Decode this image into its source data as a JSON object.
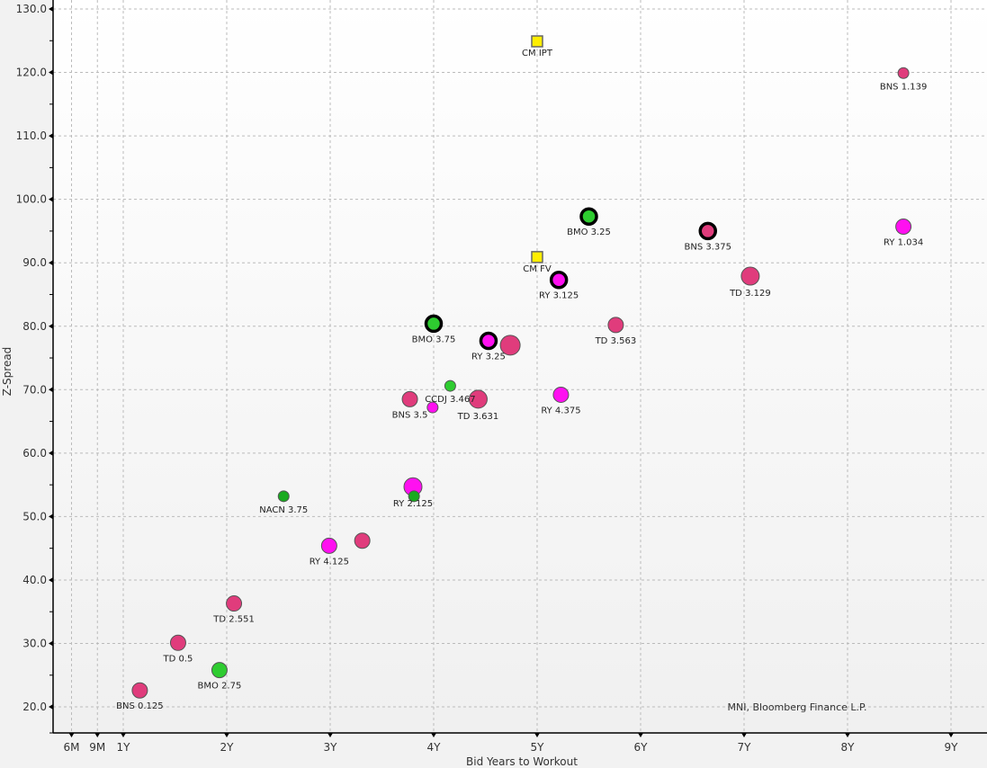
{
  "chart_data": {
    "type": "scatter",
    "title": "",
    "xlabel": "Bid Years to Workout",
    "ylabel": "Z-Spread",
    "source": "MNI, Bloomberg Finance L.P.",
    "xlim": [
      0.32,
      9.35
    ],
    "ylim": [
      16.0,
      130.0
    ],
    "grid": true,
    "x_ticks": [
      {
        "label": "6M",
        "value": 0.5
      },
      {
        "label": "9M",
        "value": 0.75
      },
      {
        "label": "1Y",
        "value": 1.0
      },
      {
        "label": "2Y",
        "value": 2.0
      },
      {
        "label": "3Y",
        "value": 3.0
      },
      {
        "label": "4Y",
        "value": 4.0
      },
      {
        "label": "5Y",
        "value": 5.0
      },
      {
        "label": "6Y",
        "value": 6.0
      },
      {
        "label": "7Y",
        "value": 7.0
      },
      {
        "label": "8Y",
        "value": 8.0
      },
      {
        "label": "9Y",
        "value": 9.0
      }
    ],
    "y_ticks": [
      "20.0",
      "30.0",
      "40.0",
      "50.0",
      "60.0",
      "70.0",
      "80.0",
      "90.0",
      "100.0",
      "110.0",
      "120.0",
      "130.0"
    ],
    "colors": {
      "TD": "#e03c7c",
      "BNS": "#e03c7c",
      "RY": "#ff10f0",
      "BMO": "#2ecc30",
      "NACN": "#1aaa20",
      "CCDJ": "#2ecc30",
      "CM": "#ffee00"
    },
    "points": [
      {
        "label": "CM IPT",
        "issuer": "CM",
        "x": 5.0,
        "y": 124.9,
        "shape": "square",
        "size": "small",
        "highlight": false
      },
      {
        "label": "BNS 1.139",
        "issuer": "BNS",
        "x": 8.54,
        "y": 119.9,
        "shape": "circle",
        "size": "small",
        "highlight": false
      },
      {
        "label": "BMO 3.25",
        "issuer": "BMO",
        "x": 5.5,
        "y": 97.3,
        "shape": "circle",
        "size": "medium",
        "highlight": true
      },
      {
        "label": "BNS 3.375",
        "issuer": "BNS",
        "x": 6.65,
        "y": 95.0,
        "shape": "circle",
        "size": "medium",
        "highlight": true
      },
      {
        "label": "RY 1.034",
        "issuer": "RY",
        "x": 8.54,
        "y": 95.7,
        "shape": "circle",
        "size": "medium",
        "highlight": false
      },
      {
        "label": "CM FV",
        "issuer": "CM",
        "x": 5.0,
        "y": 90.9,
        "shape": "square",
        "size": "small",
        "highlight": false
      },
      {
        "label": "RY 3.125",
        "issuer": "RY",
        "x": 5.21,
        "y": 87.3,
        "shape": "circle",
        "size": "medium",
        "highlight": true
      },
      {
        "label": "TD 3.129",
        "issuer": "TD",
        "x": 7.06,
        "y": 87.9,
        "shape": "circle",
        "size": "large",
        "highlight": false
      },
      {
        "label": "BMO 3.75",
        "issuer": "BMO",
        "x": 4.0,
        "y": 80.4,
        "shape": "circle",
        "size": "medium",
        "highlight": true
      },
      {
        "label": "TD 3.563",
        "issuer": "TD",
        "x": 5.76,
        "y": 80.2,
        "shape": "circle",
        "size": "medium",
        "highlight": false
      },
      {
        "label": "RY 3.25",
        "issuer": "RY",
        "x": 4.53,
        "y": 77.7,
        "shape": "circle",
        "size": "medium",
        "highlight": true
      },
      {
        "label": "",
        "issuer": "TD",
        "x": 4.74,
        "y": 77.0,
        "shape": "circle",
        "size": "xlarge",
        "highlight": false
      },
      {
        "label": "CCDJ 3.467",
        "issuer": "CCDJ",
        "x": 4.16,
        "y": 70.6,
        "shape": "circle",
        "size": "small",
        "highlight": false
      },
      {
        "label": "BNS 3.5",
        "issuer": "BNS",
        "x": 3.77,
        "y": 68.5,
        "shape": "circle",
        "size": "medium",
        "highlight": false
      },
      {
        "label": "TD 3.631",
        "issuer": "TD",
        "x": 4.43,
        "y": 68.5,
        "shape": "circle",
        "size": "large",
        "highlight": false
      },
      {
        "label": "",
        "issuer": "RY",
        "x": 3.99,
        "y": 67.2,
        "shape": "circle",
        "size": "small",
        "highlight": false
      },
      {
        "label": "RY 4.375",
        "issuer": "RY",
        "x": 5.23,
        "y": 69.2,
        "shape": "circle",
        "size": "medium",
        "highlight": false
      },
      {
        "label": "NACN 3.75",
        "issuer": "NACN",
        "x": 2.55,
        "y": 53.2,
        "shape": "circle",
        "size": "small",
        "highlight": false
      },
      {
        "label": "RY 2.125",
        "issuer": "RY",
        "x": 3.8,
        "y": 54.7,
        "shape": "circle",
        "size": "large",
        "highlight": false
      },
      {
        "label": "",
        "issuer": "NACN",
        "x": 3.81,
        "y": 53.2,
        "shape": "circle",
        "size": "small",
        "highlight": false
      },
      {
        "label": "RY 4.125",
        "issuer": "RY",
        "x": 2.99,
        "y": 45.4,
        "shape": "circle",
        "size": "medium",
        "highlight": false
      },
      {
        "label": "",
        "issuer": "TD",
        "x": 3.31,
        "y": 46.2,
        "shape": "circle",
        "size": "medium",
        "highlight": false
      },
      {
        "label": "TD 2.551",
        "issuer": "TD",
        "x": 2.07,
        "y": 36.3,
        "shape": "circle",
        "size": "medium",
        "highlight": false
      },
      {
        "label": "TD 0.5",
        "issuer": "TD",
        "x": 1.53,
        "y": 30.1,
        "shape": "circle",
        "size": "medium",
        "highlight": false
      },
      {
        "label": "BMO 2.75",
        "issuer": "BMO",
        "x": 1.93,
        "y": 25.8,
        "shape": "circle",
        "size": "medium",
        "highlight": false
      },
      {
        "label": "BNS 0.125",
        "issuer": "BNS",
        "x": 1.16,
        "y": 22.6,
        "shape": "circle",
        "size": "medium",
        "highlight": false
      }
    ]
  }
}
